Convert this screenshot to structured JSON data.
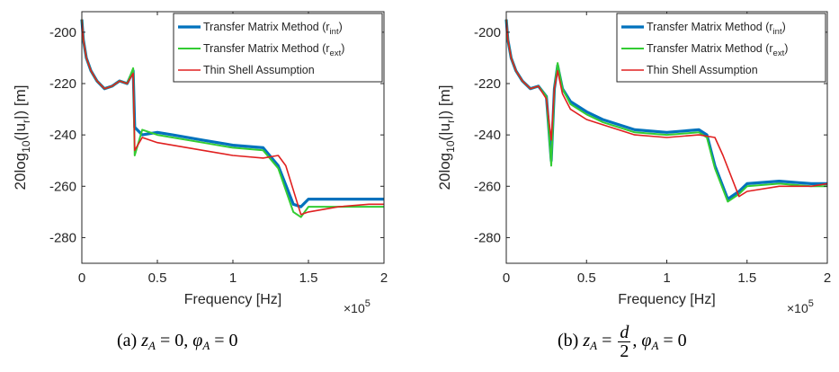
{
  "chart_data": [
    {
      "type": "line",
      "xlabel": "Frequency [Hz]",
      "ylabel": "20log10(|ur|) [m]",
      "ylabel_parts": {
        "pre": "20log",
        "sub1": "10",
        "mid": "(|u",
        "sub2": "r",
        "post": "|) [m]"
      },
      "x_multiplier": "×10^5",
      "xlim": [
        0,
        2
      ],
      "ylim": [
        -290,
        -192
      ],
      "xticks": [
        "0",
        "0.5",
        "1",
        "1.5",
        "2"
      ],
      "yticks": [
        "-200",
        "-220",
        "-240",
        "-260",
        "-280"
      ],
      "legend": [
        {
          "label": "Transfer Matrix Method (r",
          "sub": "int",
          "close": ")"
        },
        {
          "label": "Transfer Matrix Method (r",
          "sub": "ext",
          "close": ")"
        },
        {
          "label": "Thin Shell Assumption",
          "sub": "",
          "close": ""
        }
      ],
      "legend_position": "top-right",
      "series": [
        {
          "color": "#0072BD",
          "values": [
            [
              0,
              -195
            ],
            [
              0.01,
              -203
            ],
            [
              0.03,
              -210
            ],
            [
              0.06,
              -215
            ],
            [
              0.1,
              -219
            ],
            [
              0.15,
              -222
            ],
            [
              0.2,
              -221
            ],
            [
              0.25,
              -219
            ],
            [
              0.3,
              -220
            ],
            [
              0.34,
              -215
            ],
            [
              0.35,
              -237
            ],
            [
              0.4,
              -240
            ],
            [
              0.5,
              -239
            ],
            [
              0.6,
              -240
            ],
            [
              0.8,
              -242
            ],
            [
              1.0,
              -244
            ],
            [
              1.2,
              -245
            ],
            [
              1.3,
              -252
            ],
            [
              1.4,
              -267
            ],
            [
              1.45,
              -268
            ],
            [
              1.5,
              -265
            ],
            [
              1.7,
              -265
            ],
            [
              1.9,
              -265
            ],
            [
              2.0,
              -265
            ]
          ]
        },
        {
          "color": "#33CC33",
          "values": [
            [
              0,
              -195
            ],
            [
              0.01,
              -203
            ],
            [
              0.03,
              -210
            ],
            [
              0.06,
              -215
            ],
            [
              0.1,
              -219
            ],
            [
              0.15,
              -222
            ],
            [
              0.2,
              -221
            ],
            [
              0.25,
              -219
            ],
            [
              0.3,
              -220
            ],
            [
              0.34,
              -214
            ],
            [
              0.35,
              -248
            ],
            [
              0.4,
              -238
            ],
            [
              0.5,
              -240
            ],
            [
              0.6,
              -241
            ],
            [
              0.8,
              -243
            ],
            [
              1.0,
              -245
            ],
            [
              1.2,
              -246
            ],
            [
              1.3,
              -253
            ],
            [
              1.4,
              -270
            ],
            [
              1.45,
              -272
            ],
            [
              1.5,
              -268
            ],
            [
              1.7,
              -268
            ],
            [
              1.9,
              -268
            ],
            [
              2.0,
              -268
            ]
          ]
        },
        {
          "color": "#E02020",
          "values": [
            [
              0,
              -195
            ],
            [
              0.01,
              -203
            ],
            [
              0.03,
              -210
            ],
            [
              0.06,
              -215
            ],
            [
              0.1,
              -219
            ],
            [
              0.15,
              -222
            ],
            [
              0.2,
              -221
            ],
            [
              0.25,
              -219
            ],
            [
              0.3,
              -220
            ],
            [
              0.34,
              -216
            ],
            [
              0.35,
              -246
            ],
            [
              0.4,
              -241
            ],
            [
              0.5,
              -243
            ],
            [
              0.6,
              -244
            ],
            [
              0.8,
              -246
            ],
            [
              1.0,
              -248
            ],
            [
              1.2,
              -249
            ],
            [
              1.3,
              -248
            ],
            [
              1.35,
              -252
            ],
            [
              1.45,
              -271
            ],
            [
              1.5,
              -270
            ],
            [
              1.7,
              -268
            ],
            [
              1.9,
              -267
            ],
            [
              2.0,
              -267
            ]
          ]
        }
      ]
    },
    {
      "type": "line",
      "xlabel": "Frequency [Hz]",
      "ylabel": "20log10(|ur|) [m]",
      "ylabel_parts": {
        "pre": "20log",
        "sub1": "10",
        "mid": "(|u",
        "sub2": "r",
        "post": "|) [m]"
      },
      "x_multiplier": "×10^5",
      "xlim": [
        0,
        2
      ],
      "ylim": [
        -290,
        -192
      ],
      "xticks": [
        "0",
        "0.5",
        "1",
        "1.5",
        "2"
      ],
      "yticks": [
        "-200",
        "-220",
        "-240",
        "-260",
        "-280"
      ],
      "legend": [
        {
          "label": "Transfer Matrix Method (r",
          "sub": "int",
          "close": ")"
        },
        {
          "label": "Transfer Matrix Method (r",
          "sub": "ext",
          "close": ")"
        },
        {
          "label": "Thin Shell Assumption",
          "sub": "",
          "close": ""
        }
      ],
      "legend_position": "top-right",
      "series": [
        {
          "color": "#0072BD",
          "values": [
            [
              0,
              -195
            ],
            [
              0.01,
              -203
            ],
            [
              0.03,
              -210
            ],
            [
              0.06,
              -215
            ],
            [
              0.1,
              -219
            ],
            [
              0.15,
              -222
            ],
            [
              0.2,
              -221
            ],
            [
              0.25,
              -225
            ],
            [
              0.28,
              -250
            ],
            [
              0.3,
              -222
            ],
            [
              0.32,
              -213
            ],
            [
              0.35,
              -222
            ],
            [
              0.4,
              -227
            ],
            [
              0.5,
              -231
            ],
            [
              0.6,
              -234
            ],
            [
              0.8,
              -238
            ],
            [
              1.0,
              -239
            ],
            [
              1.2,
              -238
            ],
            [
              1.25,
              -240
            ],
            [
              1.3,
              -252
            ],
            [
              1.38,
              -265
            ],
            [
              1.45,
              -262
            ],
            [
              1.5,
              -259
            ],
            [
              1.7,
              -258
            ],
            [
              1.9,
              -259
            ],
            [
              2.0,
              -259
            ]
          ]
        },
        {
          "color": "#33CC33",
          "values": [
            [
              0,
              -195
            ],
            [
              0.01,
              -203
            ],
            [
              0.03,
              -210
            ],
            [
              0.06,
              -215
            ],
            [
              0.1,
              -219
            ],
            [
              0.15,
              -222
            ],
            [
              0.2,
              -221
            ],
            [
              0.25,
              -225
            ],
            [
              0.28,
              -252
            ],
            [
              0.3,
              -222
            ],
            [
              0.32,
              -212
            ],
            [
              0.35,
              -222
            ],
            [
              0.4,
              -228
            ],
            [
              0.5,
              -232
            ],
            [
              0.6,
              -235
            ],
            [
              0.8,
              -239
            ],
            [
              1.0,
              -240
            ],
            [
              1.2,
              -239
            ],
            [
              1.25,
              -241
            ],
            [
              1.3,
              -253
            ],
            [
              1.38,
              -266
            ],
            [
              1.45,
              -263
            ],
            [
              1.5,
              -260
            ],
            [
              1.7,
              -259
            ],
            [
              1.9,
              -260
            ],
            [
              2.0,
              -260
            ]
          ]
        },
        {
          "color": "#E02020",
          "values": [
            [
              0,
              -195
            ],
            [
              0.01,
              -203
            ],
            [
              0.03,
              -210
            ],
            [
              0.06,
              -215
            ],
            [
              0.1,
              -219
            ],
            [
              0.15,
              -222
            ],
            [
              0.2,
              -221
            ],
            [
              0.25,
              -226
            ],
            [
              0.28,
              -242
            ],
            [
              0.3,
              -222
            ],
            [
              0.32,
              -215
            ],
            [
              0.35,
              -224
            ],
            [
              0.4,
              -230
            ],
            [
              0.5,
              -234
            ],
            [
              0.6,
              -236
            ],
            [
              0.8,
              -240
            ],
            [
              1.0,
              -241
            ],
            [
              1.2,
              -240
            ],
            [
              1.3,
              -241
            ],
            [
              1.35,
              -248
            ],
            [
              1.45,
              -264
            ],
            [
              1.5,
              -262
            ],
            [
              1.7,
              -260
            ],
            [
              1.9,
              -260
            ],
            [
              2.0,
              -259
            ]
          ]
        }
      ]
    }
  ],
  "captions": [
    {
      "label": "(a)",
      "expr": {
        "z": "z",
        "zsub": "A",
        "eq1": " = 0, ",
        "phi": "φ",
        "phisub": "A",
        "eq2": " = 0"
      }
    },
    {
      "label": "(b)",
      "expr": {
        "z": "z",
        "zsub": "A",
        "eq1": " = ",
        "num": "d",
        "den": "2",
        "sep": ", ",
        "phi": "φ",
        "phisub": "A",
        "eq2": " = 0"
      }
    }
  ]
}
